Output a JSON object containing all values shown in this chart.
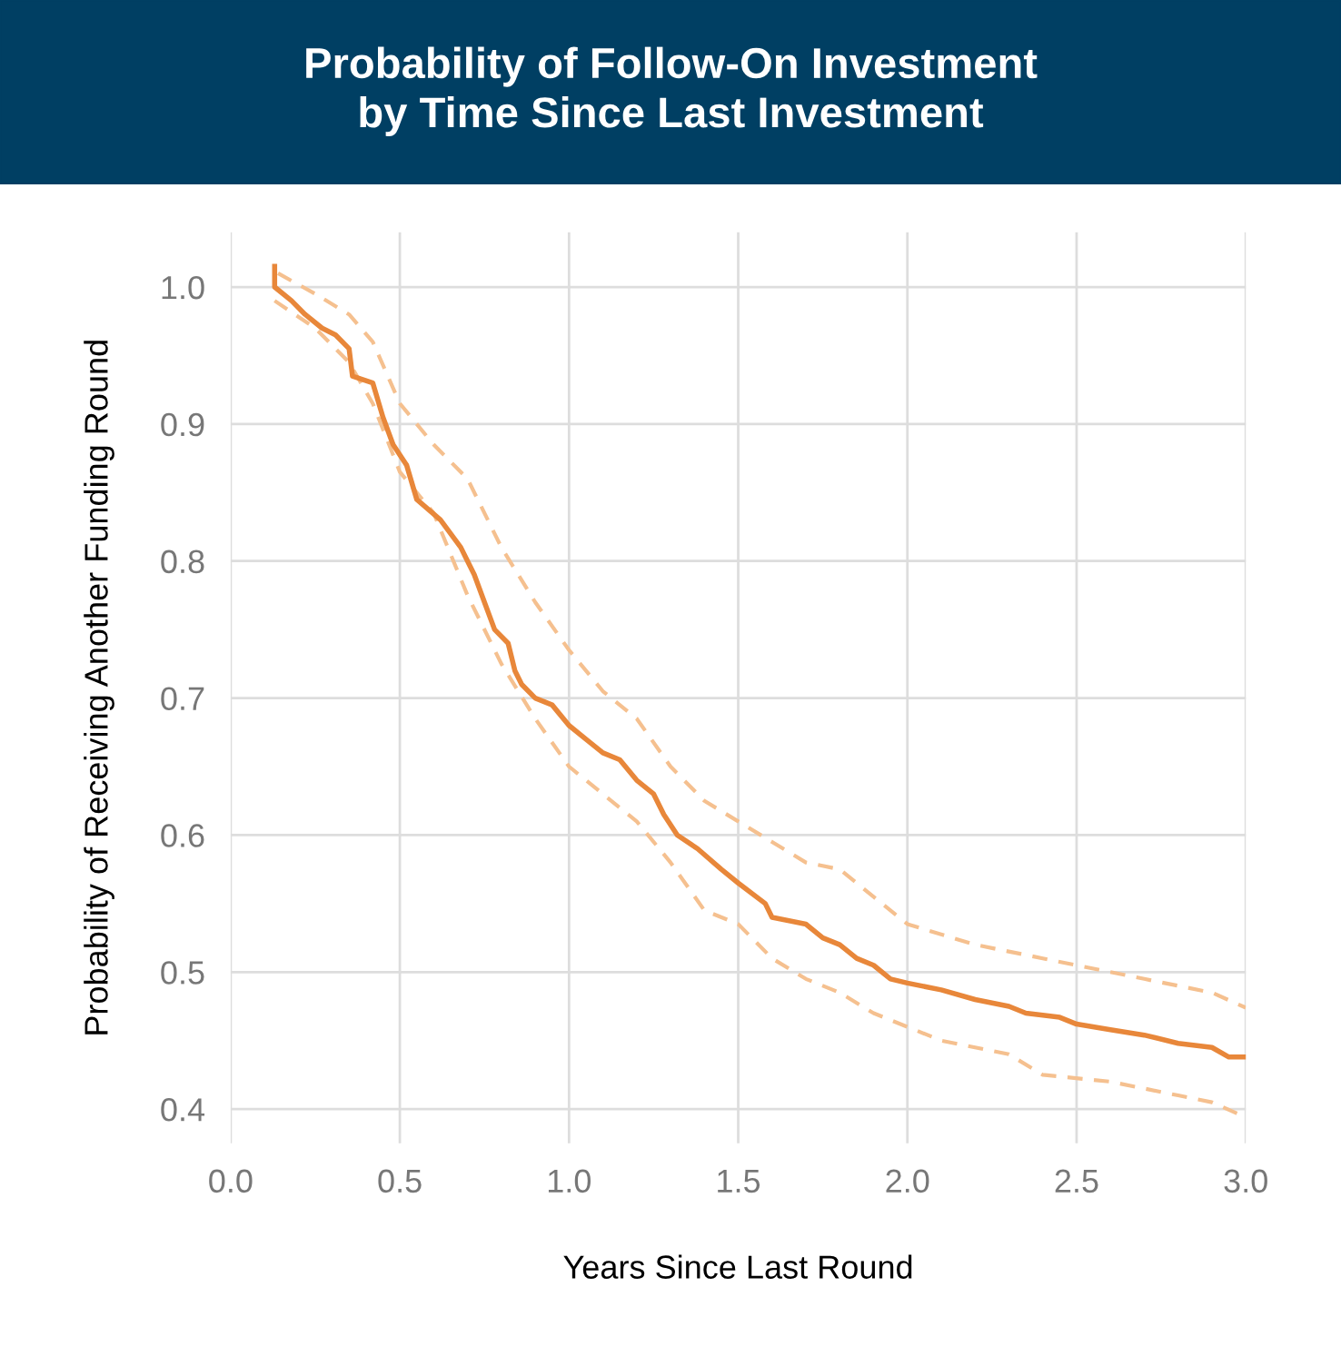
{
  "chart_data": {
    "type": "line",
    "title": "Probability of Follow-On Investment\nby Time Since Last Investment",
    "xlabel": "Years Since Last Round",
    "ylabel": "Probability of Receiving Another Funding Round",
    "xlim": [
      0,
      3.0
    ],
    "ylim": [
      0.375,
      1.04
    ],
    "xticks": [
      {
        "value": 0,
        "label": "0.0"
      },
      0.5,
      {
        "value": 1,
        "label": "1.0"
      },
      1.5,
      {
        "value": 2,
        "label": "2.0"
      },
      2.5,
      {
        "value": 3,
        "label": "3.0"
      }
    ],
    "yticks": [
      0.4,
      0.5,
      0.6,
      0.7,
      0.8,
      0.9,
      {
        "value": 1,
        "label": "1.0"
      }
    ],
    "grid": true,
    "series": [
      {
        "color": "#f5c08f",
        "line_style": "dashed",
        "x": [
          0.14,
          0.25,
          0.35,
          0.42,
          0.5,
          0.6,
          0.7,
          0.8,
          0.9,
          1.0,
          1.1,
          1.2,
          1.3,
          1.4,
          1.5,
          1.6,
          1.7,
          1.8,
          1.9,
          2.0,
          2.2,
          2.4,
          2.5,
          2.6,
          2.7,
          2.8,
          2.9,
          3.0
        ],
        "values": [
          1.01,
          0.995,
          0.98,
          0.96,
          0.915,
          0.885,
          0.86,
          0.81,
          0.77,
          0.735,
          0.705,
          0.685,
          0.65,
          0.625,
          0.61,
          0.595,
          0.58,
          0.575,
          0.555,
          0.535,
          0.52,
          0.51,
          0.505,
          0.5,
          0.495,
          0.49,
          0.485,
          0.474
        ]
      },
      {
        "color": "#f5c08f",
        "line_style": "dashed",
        "x": [
          0.13,
          0.25,
          0.35,
          0.42,
          0.5,
          0.6,
          0.7,
          0.8,
          0.9,
          1.0,
          1.1,
          1.2,
          1.3,
          1.4,
          1.5,
          1.6,
          1.7,
          1.8,
          1.9,
          2.0,
          2.1,
          2.2,
          2.3,
          2.4,
          2.6,
          2.8,
          2.9,
          3.0
        ],
        "values": [
          0.99,
          0.97,
          0.945,
          0.915,
          0.865,
          0.835,
          0.775,
          0.725,
          0.685,
          0.65,
          0.63,
          0.61,
          0.58,
          0.545,
          0.535,
          0.51,
          0.495,
          0.485,
          0.47,
          0.46,
          0.45,
          0.445,
          0.44,
          0.425,
          0.42,
          0.41,
          0.405,
          0.394
        ]
      },
      {
        "color": "#e8873a",
        "line_style": "solid",
        "x": [
          0.13,
          0.13,
          0.18,
          0.22,
          0.27,
          0.31,
          0.35,
          0.36,
          0.42,
          0.45,
          0.48,
          0.52,
          0.55,
          0.62,
          0.68,
          0.72,
          0.75,
          0.78,
          0.82,
          0.84,
          0.86,
          0.9,
          0.95,
          1.0,
          1.05,
          1.1,
          1.15,
          1.2,
          1.25,
          1.28,
          1.32,
          1.38,
          1.45,
          1.5,
          1.58,
          1.6,
          1.7,
          1.75,
          1.8,
          1.85,
          1.9,
          1.95,
          2.0,
          2.1,
          2.2,
          2.3,
          2.35,
          2.45,
          2.5,
          2.6,
          2.7,
          2.8,
          2.9,
          2.95,
          3.0
        ],
        "values": [
          1.015,
          1.0,
          0.99,
          0.98,
          0.97,
          0.965,
          0.955,
          0.935,
          0.93,
          0.905,
          0.885,
          0.87,
          0.845,
          0.83,
          0.81,
          0.79,
          0.77,
          0.75,
          0.74,
          0.72,
          0.71,
          0.7,
          0.695,
          0.68,
          0.67,
          0.66,
          0.655,
          0.64,
          0.63,
          0.615,
          0.6,
          0.59,
          0.575,
          0.565,
          0.55,
          0.54,
          0.535,
          0.525,
          0.52,
          0.51,
          0.505,
          0.495,
          0.492,
          0.487,
          0.48,
          0.475,
          0.47,
          0.467,
          0.462,
          0.458,
          0.454,
          0.448,
          0.445,
          0.438,
          0.438
        ]
      }
    ]
  }
}
